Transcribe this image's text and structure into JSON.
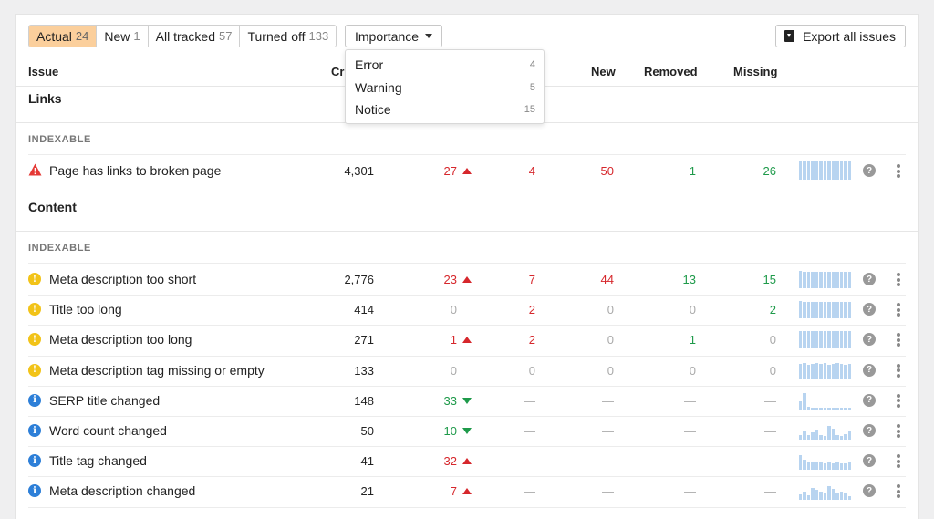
{
  "filters": [
    {
      "label": "Actual",
      "count": "24",
      "active": true
    },
    {
      "label": "New",
      "count": "1",
      "active": false
    },
    {
      "label": "All tracked",
      "count": "57",
      "active": false
    },
    {
      "label": "Turned off",
      "count": "133",
      "active": false
    }
  ],
  "importance_label": "Importance",
  "export_label": "Export all issues",
  "headers": {
    "issue": "Issue",
    "crawled": "Cr",
    "new": "New",
    "removed": "Removed",
    "missing": "Missing"
  },
  "dropdown": [
    {
      "label": "Error",
      "count": "4"
    },
    {
      "label": "Warning",
      "count": "5"
    },
    {
      "label": "Notice",
      "count": "15"
    }
  ],
  "sections": [
    {
      "title": "Links",
      "subtitle": "INDEXABLE",
      "rows": [
        {
          "type": "error",
          "name": "Page has links to broken page",
          "crawled": "4,301",
          "change": "27",
          "change_dir": "up",
          "added": "4",
          "new": "50",
          "removed": "1",
          "missing": "26",
          "spark": [
            20,
            20,
            20,
            20,
            20,
            20,
            20,
            20,
            20,
            20,
            20,
            20,
            20
          ]
        }
      ]
    },
    {
      "title": "Content",
      "subtitle": "INDEXABLE",
      "rows": [
        {
          "type": "warning",
          "name": "Meta description too short",
          "crawled": "2,776",
          "change": "23",
          "change_dir": "up",
          "added": "7",
          "new": "44",
          "removed": "13",
          "missing": "15",
          "spark": [
            19,
            18,
            18,
            18,
            18,
            18,
            18,
            18,
            18,
            18,
            18,
            18,
            18
          ]
        },
        {
          "type": "warning",
          "name": "Title too long",
          "crawled": "414",
          "change": "0",
          "change_dir": "",
          "added": "2",
          "new": "0",
          "removed": "0",
          "missing": "2",
          "spark": [
            19,
            18,
            18,
            18,
            18,
            18,
            18,
            18,
            18,
            18,
            18,
            18,
            18
          ]
        },
        {
          "type": "warning",
          "name": "Meta description too long",
          "crawled": "271",
          "change": "1",
          "change_dir": "up",
          "added": "2",
          "new": "0",
          "removed": "1",
          "missing": "0",
          "spark": [
            19,
            19,
            19,
            19,
            19,
            19,
            19,
            19,
            19,
            19,
            19,
            19,
            19
          ]
        },
        {
          "type": "warning",
          "name": "Meta description tag missing or empty",
          "crawled": "133",
          "change": "0",
          "change_dir": "",
          "added": "0",
          "new": "0",
          "removed": "0",
          "missing": "0",
          "spark": [
            17,
            18,
            16,
            17,
            18,
            17,
            18,
            16,
            17,
            18,
            17,
            16,
            17
          ]
        },
        {
          "type": "notice",
          "name": "SERP title changed",
          "crawled": "148",
          "change": "33",
          "change_dir": "down",
          "added": "—",
          "new": "—",
          "removed": "—",
          "missing": "—",
          "spark": [
            9,
            18,
            3,
            2,
            2,
            2,
            2,
            2,
            2,
            2,
            2,
            2,
            2
          ]
        },
        {
          "type": "notice",
          "name": "Word count changed",
          "crawled": "50",
          "change": "10",
          "change_dir": "down",
          "added": "—",
          "new": "—",
          "removed": "—",
          "missing": "—",
          "spark": [
            5,
            9,
            5,
            8,
            11,
            5,
            4,
            15,
            12,
            5,
            4,
            6,
            9
          ]
        },
        {
          "type": "notice",
          "name": "Title tag changed",
          "crawled": "41",
          "change": "32",
          "change_dir": "up",
          "added": "—",
          "new": "—",
          "removed": "—",
          "missing": "—",
          "spark": [
            16,
            11,
            9,
            9,
            8,
            9,
            7,
            8,
            7,
            9,
            7,
            7,
            8
          ]
        },
        {
          "type": "notice",
          "name": "Meta description changed",
          "crawled": "21",
          "change": "7",
          "change_dir": "up",
          "added": "—",
          "new": "—",
          "removed": "—",
          "missing": "—",
          "spark": [
            6,
            9,
            5,
            13,
            11,
            9,
            7,
            15,
            12,
            7,
            9,
            7,
            4
          ]
        }
      ]
    }
  ],
  "help_glyph": "?",
  "colors": {
    "active_filter": "#fbcf9c",
    "error": "#e53935",
    "warning": "#f2c318",
    "notice": "#2d7fd8",
    "up": "#d6272c",
    "down": "#1e9a4a",
    "spark": "#b8d4f0"
  }
}
